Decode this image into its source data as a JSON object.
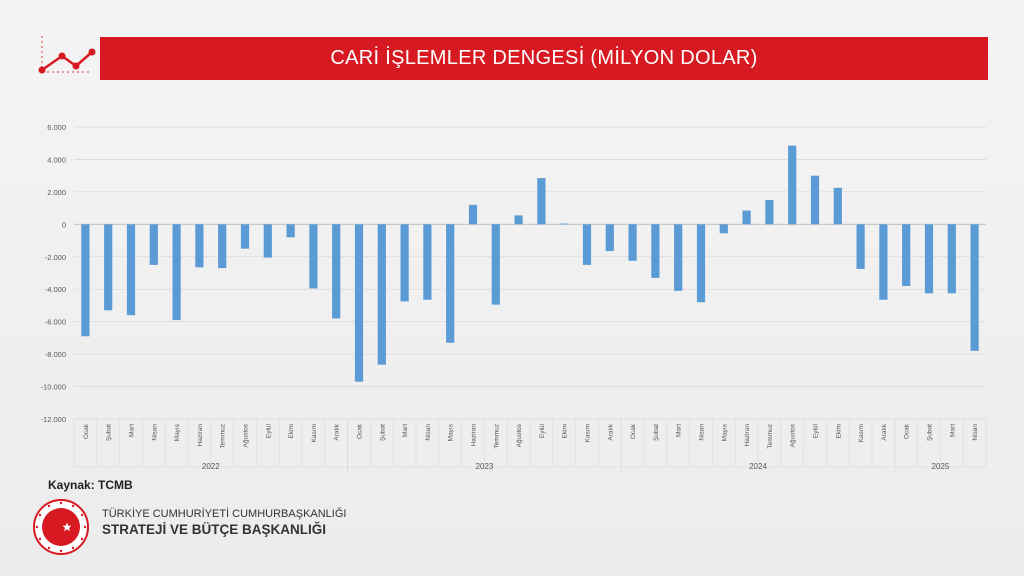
{
  "header": {
    "title": "CARİ İŞLEMLER DENGESİ (MİLYON DOLAR)"
  },
  "footer": {
    "source": "Kaynak: TCMB",
    "org_line1": "TÜRKİYE CUMHURİYETİ CUMHURBAŞKANLIĞI",
    "org_line2": "STRATEJİ VE BÜTÇE BAŞKANLIĞI",
    "seal_text": "T.C. CUMHURBAŞKANLIĞI STRATEJİ VE BÜTÇE BAŞKANLIĞI"
  },
  "colors": {
    "bar": "#5b9bd5",
    "title_bar": "#d71a21",
    "grid": "#d9d9d9",
    "axis_text": "#595959"
  },
  "chart_data": {
    "type": "bar",
    "title": "CARİ İŞLEMLER DENGESİ (MİLYON DOLAR)",
    "xlabel": "",
    "ylabel": "",
    "ylim": [
      -12000,
      6000
    ],
    "yticks": [
      6000,
      4000,
      2000,
      0,
      -2000,
      -4000,
      -6000,
      -8000,
      -10000,
      -12000
    ],
    "ytick_labels": [
      "6.000",
      "4.000",
      "2.000",
      "0",
      "-2.000",
      "-4.000",
      "-6.000",
      "-8.000",
      "-10.000",
      "-12.000"
    ],
    "grid": true,
    "legend": "none",
    "groups": [
      {
        "label": "2022",
        "categories": [
          "Ocak",
          "Şubat",
          "Mart",
          "Nisan",
          "Mayıs",
          "Haziran",
          "Temmuz",
          "Ağustos",
          "Eylül",
          "Ekim",
          "Kasım",
          "Aralık"
        ],
        "values": [
          -6900,
          -5300,
          -5600,
          -2500,
          -5900,
          -2650,
          -2700,
          -1500,
          -2050,
          -800,
          -3950,
          -5800
        ]
      },
      {
        "label": "2023",
        "categories": [
          "Ocak",
          "Şubat",
          "Mart",
          "Nisan",
          "Mayıs",
          "Haziran",
          "Temmuz",
          "Ağustos",
          "Eylül",
          "Ekim",
          "Kasım",
          "Aralık"
        ],
        "values": [
          -9700,
          -8650,
          -4750,
          -4650,
          -7300,
          1200,
          -4950,
          550,
          2850,
          50,
          -2500,
          -1650
        ]
      },
      {
        "label": "2024",
        "categories": [
          "Ocak",
          "Şubat",
          "Mart",
          "Nisan",
          "Mayıs",
          "Haziran",
          "Temmuz",
          "Ağustos",
          "Eylül",
          "Ekim",
          "Kasım",
          "Aralık"
        ],
        "values": [
          -2250,
          -3300,
          -4100,
          -4800,
          -550,
          850,
          1500,
          4850,
          3000,
          2250,
          -2750,
          -4650
        ]
      },
      {
        "label": "2025",
        "categories": [
          "Ocak",
          "Şubat",
          "Mart",
          "Nisan"
        ],
        "values": [
          -3800,
          -4250,
          -4250,
          -7800
        ]
      }
    ]
  }
}
